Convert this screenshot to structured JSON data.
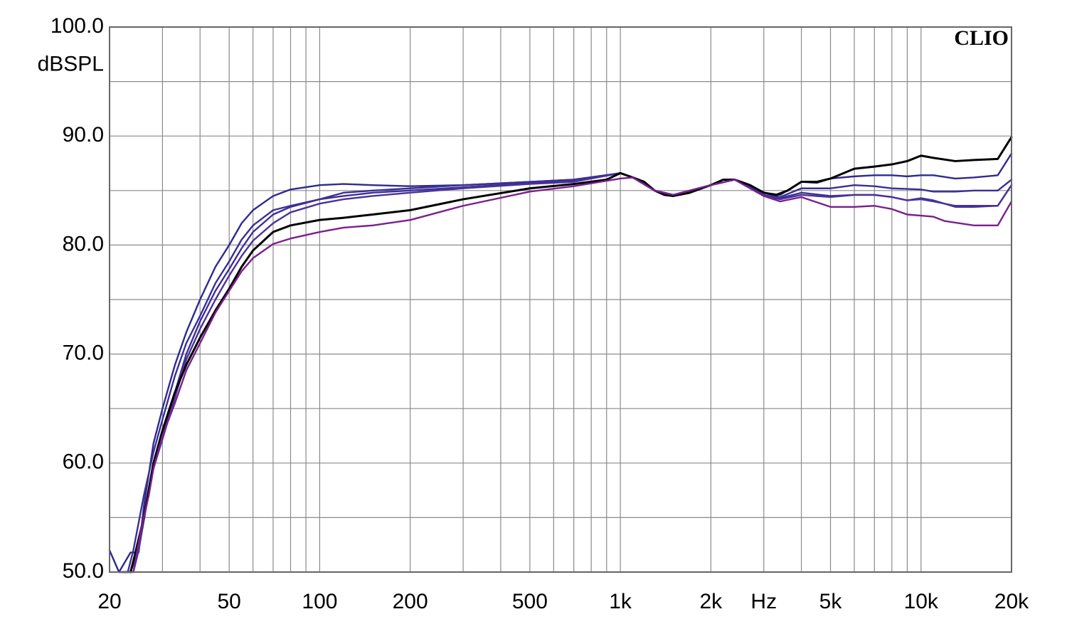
{
  "chart_data": {
    "type": "line",
    "brand": "CLIO",
    "ylabel": "dBSPL",
    "xlabel": "Hz",
    "x_scale": "log",
    "xlim": [
      20,
      20000
    ],
    "ylim": [
      50,
      100
    ],
    "grid": true,
    "legend": "none",
    "x_tick_values": [
      20,
      50,
      100,
      200,
      500,
      1000,
      2000,
      5000,
      10000,
      20000
    ],
    "x_tick_labels": [
      "20",
      "50",
      "100",
      "200",
      "500",
      "1k",
      "2k",
      "5k",
      "10k",
      "20k"
    ],
    "y_tick_values": [
      50,
      60,
      70,
      80,
      90,
      100
    ],
    "y_tick_labels": [
      "50.0",
      "60.0",
      "70.0",
      "80.0",
      "90.0",
      "100.0"
    ],
    "series": [
      {
        "color": "#2f2a8e",
        "points": [
          [
            20,
            52
          ],
          [
            21.5,
            50
          ],
          [
            23.5,
            51.8
          ],
          [
            25,
            51.8
          ],
          [
            26,
            56
          ],
          [
            28,
            61.8
          ],
          [
            30,
            65
          ],
          [
            33,
            69
          ],
          [
            36,
            72
          ],
          [
            40,
            75
          ],
          [
            45,
            78
          ],
          [
            50,
            80
          ],
          [
            55,
            82
          ],
          [
            60,
            83.2
          ],
          [
            70,
            84.5
          ],
          [
            80,
            85.1
          ],
          [
            100,
            85.5
          ],
          [
            120,
            85.6
          ],
          [
            150,
            85.5
          ],
          [
            200,
            85.4
          ],
          [
            300,
            85.5
          ],
          [
            500,
            85.8
          ],
          [
            700,
            86
          ],
          [
            900,
            86.4
          ],
          [
            1000,
            86.6
          ],
          [
            1100,
            86.2
          ],
          [
            1300,
            85
          ],
          [
            1500,
            84.6
          ],
          [
            2000,
            85.5
          ],
          [
            2200,
            86
          ],
          [
            2400,
            86
          ],
          [
            3000,
            84.8
          ],
          [
            3400,
            84.6
          ],
          [
            4000,
            85.8
          ],
          [
            4500,
            85.7
          ],
          [
            5000,
            86.1
          ],
          [
            6000,
            86.3
          ],
          [
            7000,
            86.4
          ],
          [
            8000,
            86.4
          ],
          [
            9000,
            86.3
          ],
          [
            10000,
            86.4
          ],
          [
            11000,
            86.4
          ],
          [
            13000,
            86.1
          ],
          [
            15000,
            86.2
          ],
          [
            18000,
            86.4
          ],
          [
            20000,
            88.4
          ]
        ]
      },
      {
        "color": "#3a2f95",
        "points": [
          [
            21.5,
            50
          ],
          [
            23,
            50
          ],
          [
            24,
            52
          ],
          [
            26,
            57
          ],
          [
            28,
            61
          ],
          [
            30,
            64
          ],
          [
            33,
            68
          ],
          [
            36,
            71
          ],
          [
            40,
            73.5
          ],
          [
            45,
            76.5
          ],
          [
            50,
            78.5
          ],
          [
            55,
            80.5
          ],
          [
            60,
            81.8
          ],
          [
            70,
            83.2
          ],
          [
            80,
            83.6
          ],
          [
            100,
            84.2
          ],
          [
            120,
            84.8
          ],
          [
            150,
            85
          ],
          [
            200,
            85.2
          ],
          [
            300,
            85.5
          ],
          [
            500,
            85.8
          ],
          [
            700,
            86
          ],
          [
            1000,
            86.6
          ],
          [
            1100,
            86.2
          ],
          [
            1300,
            85
          ],
          [
            1500,
            84.6
          ],
          [
            2000,
            85.5
          ],
          [
            2400,
            86
          ],
          [
            3000,
            84.8
          ],
          [
            3400,
            84.4
          ],
          [
            4000,
            85.2
          ],
          [
            5000,
            85.2
          ],
          [
            6000,
            85.5
          ],
          [
            7000,
            85.4
          ],
          [
            8000,
            85.2
          ],
          [
            10000,
            85.1
          ],
          [
            11000,
            84.9
          ],
          [
            13000,
            84.9
          ],
          [
            15000,
            85
          ],
          [
            18000,
            85
          ],
          [
            20000,
            86
          ]
        ]
      },
      {
        "color": "#3d2f96",
        "points": [
          [
            22,
            50
          ],
          [
            23.5,
            50
          ],
          [
            24.5,
            51.5
          ],
          [
            26,
            55
          ],
          [
            28,
            59.5
          ],
          [
            30,
            62.5
          ],
          [
            33,
            66.5
          ],
          [
            36,
            70
          ],
          [
            40,
            73
          ],
          [
            45,
            75.8
          ],
          [
            50,
            77.8
          ],
          [
            55,
            79.7
          ],
          [
            60,
            81.2
          ],
          [
            70,
            82.8
          ],
          [
            80,
            83.5
          ],
          [
            100,
            84.2
          ],
          [
            120,
            84.5
          ],
          [
            150,
            84.8
          ],
          [
            200,
            85
          ],
          [
            300,
            85.3
          ],
          [
            500,
            85.7
          ],
          [
            700,
            85.9
          ],
          [
            1000,
            86.6
          ],
          [
            1100,
            86.2
          ],
          [
            1300,
            85
          ],
          [
            1500,
            84.6
          ],
          [
            2000,
            85.5
          ],
          [
            2400,
            86
          ],
          [
            3000,
            84.6
          ],
          [
            3400,
            84.3
          ],
          [
            4000,
            84.8
          ],
          [
            5000,
            84.5
          ],
          [
            6000,
            84.6
          ],
          [
            7000,
            84.6
          ],
          [
            8000,
            84.4
          ],
          [
            9000,
            84.1
          ],
          [
            10000,
            84.3
          ],
          [
            11000,
            84.1
          ],
          [
            13000,
            83.5
          ],
          [
            15000,
            83.5
          ],
          [
            18000,
            83.6
          ],
          [
            20000,
            85.5
          ]
        ]
      },
      {
        "color": "#4a3397",
        "points": [
          [
            22.5,
            50
          ],
          [
            24,
            50
          ],
          [
            25,
            52
          ],
          [
            26.5,
            56
          ],
          [
            28,
            59.5
          ],
          [
            30,
            62.2
          ],
          [
            33,
            66
          ],
          [
            36,
            69.5
          ],
          [
            40,
            72.3
          ],
          [
            45,
            75
          ],
          [
            50,
            77.2
          ],
          [
            55,
            79
          ],
          [
            60,
            80.4
          ],
          [
            70,
            82
          ],
          [
            80,
            83
          ],
          [
            100,
            83.8
          ],
          [
            120,
            84.2
          ],
          [
            150,
            84.5
          ],
          [
            200,
            84.8
          ],
          [
            300,
            85.2
          ],
          [
            500,
            85.6
          ],
          [
            700,
            85.8
          ],
          [
            1000,
            86.6
          ],
          [
            1100,
            86.2
          ],
          [
            1300,
            85
          ],
          [
            1500,
            84.6
          ],
          [
            2000,
            85.5
          ],
          [
            2400,
            86
          ],
          [
            3000,
            84.5
          ],
          [
            3400,
            84.2
          ],
          [
            4000,
            84.6
          ],
          [
            5000,
            84.4
          ],
          [
            6000,
            84.6
          ],
          [
            7000,
            84.6
          ],
          [
            8000,
            84.4
          ],
          [
            9000,
            84.1
          ],
          [
            10000,
            84.2
          ],
          [
            11000,
            84
          ],
          [
            13000,
            83.6
          ],
          [
            15000,
            83.6
          ],
          [
            18000,
            83.6
          ],
          [
            20000,
            85.5
          ]
        ]
      },
      {
        "color": "#000000",
        "points": [
          [
            23.5,
            50
          ],
          [
            24,
            51
          ],
          [
            26,
            55
          ],
          [
            28,
            60
          ],
          [
            30,
            63
          ],
          [
            33,
            66.5
          ],
          [
            36,
            69
          ],
          [
            40,
            71.5
          ],
          [
            45,
            74
          ],
          [
            50,
            76
          ],
          [
            55,
            78
          ],
          [
            60,
            79.5
          ],
          [
            70,
            81.2
          ],
          [
            80,
            81.8
          ],
          [
            100,
            82.3
          ],
          [
            120,
            82.5
          ],
          [
            150,
            82.8
          ],
          [
            200,
            83.2
          ],
          [
            300,
            84.2
          ],
          [
            500,
            85.2
          ],
          [
            700,
            85.6
          ],
          [
            900,
            86
          ],
          [
            1000,
            86.6
          ],
          [
            1100,
            86.2
          ],
          [
            1200,
            85.8
          ],
          [
            1300,
            85
          ],
          [
            1400,
            84.6
          ],
          [
            1500,
            84.5
          ],
          [
            1700,
            84.8
          ],
          [
            2000,
            85.5
          ],
          [
            2200,
            86
          ],
          [
            2400,
            86
          ],
          [
            2700,
            85.5
          ],
          [
            3000,
            84.8
          ],
          [
            3300,
            84.6
          ],
          [
            3600,
            85
          ],
          [
            4000,
            85.8
          ],
          [
            4500,
            85.8
          ],
          [
            5000,
            86.1
          ],
          [
            6000,
            87
          ],
          [
            7000,
            87.2
          ],
          [
            8000,
            87.4
          ],
          [
            9000,
            87.7
          ],
          [
            10000,
            88.2
          ],
          [
            11000,
            88
          ],
          [
            13000,
            87.7
          ],
          [
            15000,
            87.8
          ],
          [
            18000,
            87.9
          ],
          [
            20000,
            89.9
          ]
        ]
      },
      {
        "color": "#7b1f8f",
        "points": [
          [
            24,
            50
          ],
          [
            25.5,
            54
          ],
          [
            27,
            57
          ],
          [
            28,
            59.5
          ],
          [
            30,
            62.5
          ],
          [
            33,
            65.5
          ],
          [
            36,
            68.5
          ],
          [
            40,
            71
          ],
          [
            45,
            73.8
          ],
          [
            50,
            75.8
          ],
          [
            55,
            77.6
          ],
          [
            60,
            78.8
          ],
          [
            70,
            80.1
          ],
          [
            80,
            80.6
          ],
          [
            100,
            81.2
          ],
          [
            120,
            81.6
          ],
          [
            150,
            81.8
          ],
          [
            200,
            82.3
          ],
          [
            300,
            83.6
          ],
          [
            500,
            84.9
          ],
          [
            700,
            85.4
          ],
          [
            1000,
            86.1
          ],
          [
            1100,
            86.2
          ],
          [
            1300,
            85
          ],
          [
            1500,
            84.6
          ],
          [
            2000,
            85.5
          ],
          [
            2400,
            86
          ],
          [
            3000,
            84.5
          ],
          [
            3400,
            84
          ],
          [
            4000,
            84.4
          ],
          [
            5000,
            83.5
          ],
          [
            6000,
            83.5
          ],
          [
            7000,
            83.6
          ],
          [
            8000,
            83.3
          ],
          [
            9000,
            82.8
          ],
          [
            10000,
            82.7
          ],
          [
            11000,
            82.6
          ],
          [
            12000,
            82.2
          ],
          [
            15000,
            81.8
          ],
          [
            18000,
            81.8
          ],
          [
            20000,
            84
          ]
        ]
      }
    ]
  }
}
